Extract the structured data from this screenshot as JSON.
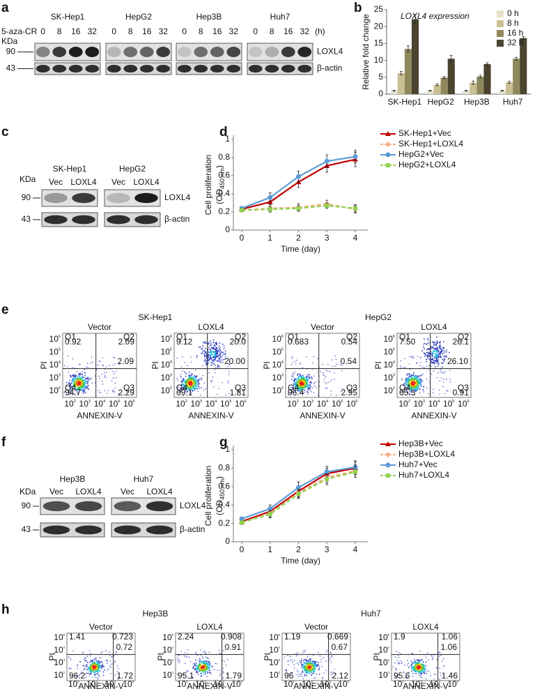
{
  "panels": {
    "a": {
      "label": "a",
      "treatment": "5-aza-CR",
      "kda": "KDa",
      "unit": "(h)",
      "markers": [
        "90",
        "43"
      ],
      "proteins": [
        "LOXL4",
        "β-actin"
      ],
      "cell_lines": [
        {
          "name": "SK-Hep1",
          "lanes": [
            "0",
            "8",
            "16",
            "32"
          ]
        },
        {
          "name": "HepG2",
          "lanes": [
            "0",
            "8",
            "16",
            "32"
          ]
        },
        {
          "name": "Hep3B",
          "lanes": [
            "0",
            "8",
            "16",
            "32"
          ]
        },
        {
          "name": "Huh7",
          "lanes": [
            "0",
            "8",
            "16",
            "32"
          ]
        }
      ]
    },
    "c": {
      "label": "c",
      "kda": "KDa",
      "markers": [
        "90",
        "43"
      ],
      "proteins": [
        "LOXL4",
        "β-actin"
      ],
      "cell_lines": [
        {
          "name": "SK-Hep1",
          "lanes": [
            "Vec",
            "LOXL4"
          ]
        },
        {
          "name": "HepG2",
          "lanes": [
            "Vec",
            "LOXL4"
          ]
        }
      ]
    },
    "e": {
      "label": "e",
      "x_label": "ANNEXIN-V",
      "y_label": "PI",
      "tick_base": "10",
      "tick_exponents": [
        "2",
        "3",
        "4",
        "5",
        "6"
      ],
      "groups": [
        {
          "name": "SK-Hep1",
          "plots": [
            {
              "title": "Vector",
              "value": "2.09",
              "quadrants": [
                {
                  "name": "Q1",
                  "value": "0.92"
                },
                {
                  "name": "Q2",
                  "value": "2.09"
                },
                {
                  "name": "Q4",
                  "value": "94.7"
                },
                {
                  "name": "Q3",
                  "value": "2.29"
                }
              ]
            },
            {
              "title": "LOXL4",
              "value": "20.00",
              "quadrants": [
                {
                  "name": "Q1",
                  "value": "9.12"
                },
                {
                  "name": "Q2",
                  "value": "20.0"
                },
                {
                  "name": "Q4",
                  "value": "69.1"
                },
                {
                  "name": "Q3",
                  "value": "1.81"
                }
              ]
            }
          ]
        },
        {
          "name": "HepG2",
          "plots": [
            {
              "title": "Vector",
              "value": "0.54",
              "quadrants": [
                {
                  "name": "Q1",
                  "value": "0.683"
                },
                {
                  "name": "Q2",
                  "value": "0.54"
                },
                {
                  "name": "Q4",
                  "value": "96.4"
                },
                {
                  "name": "Q3",
                  "value": "2.95"
                }
              ]
            },
            {
              "title": "LOXL4",
              "value": "26.10",
              "quadrants": [
                {
                  "name": "Q1",
                  "value": "7.50"
                },
                {
                  "name": "Q2",
                  "value": "26.1"
                },
                {
                  "name": "Q4",
                  "value": "65.5"
                },
                {
                  "name": "Q3",
                  "value": "0.91"
                }
              ]
            }
          ]
        }
      ]
    },
    "f": {
      "label": "f",
      "kda": "KDa",
      "markers": [
        "90",
        "43"
      ],
      "proteins": [
        "LOXL4",
        "β-actin"
      ],
      "cell_lines": [
        {
          "name": "Hep3B",
          "lanes": [
            "Vec",
            "LOXL4"
          ]
        },
        {
          "name": "Huh7",
          "lanes": [
            "Vec",
            "LOXL4"
          ]
        }
      ]
    },
    "h": {
      "label": "h",
      "x_label": "ANNEXIN-V",
      "y_label": "PI",
      "tick_base": "10",
      "tick_exponents": [
        "2",
        "3",
        "4",
        "5"
      ],
      "groups": [
        {
          "name": "Hep3B",
          "plots": [
            {
              "title": "Vector",
              "value": "0.72",
              "corners": [
                "1.41",
                "0.723",
                "96.2",
                "1.72"
              ]
            },
            {
              "title": "LOXL4",
              "value": "0.91",
              "corners": [
                "2.24",
                "0.908",
                "95.1",
                "1.79"
              ]
            }
          ]
        },
        {
          "name": "Huh7",
          "plots": [
            {
              "title": "Vector",
              "value": "0.67",
              "corners": [
                "1.19",
                "0.669",
                "96",
                "2.12"
              ]
            },
            {
              "title": "LOXL4",
              "value": "1.06",
              "corners": [
                "1.9",
                "1.06",
                "95.6",
                "1.46"
              ]
            }
          ]
        }
      ]
    }
  },
  "chart_data": [
    {
      "type": "bar",
      "panel_label": "b",
      "title": "LOXL4 expression",
      "y_label": "Relative fold change",
      "categories": [
        "SK-Hep1",
        "HepG2",
        "Hep3B",
        "Huh7"
      ],
      "series": [
        {
          "name": "0 h",
          "color": "#e6e1c8",
          "values": [
            1,
            1,
            1,
            1
          ],
          "errors": [
            0.1,
            0.1,
            0.1,
            0.1
          ]
        },
        {
          "name": "8 h",
          "color": "#c9bf94",
          "values": [
            6.2,
            2.8,
            3.4,
            3.5
          ],
          "errors": [
            0.5,
            0.3,
            0.5,
            0.3
          ]
        },
        {
          "name": "16 h",
          "color": "#8f885c",
          "values": [
            13.4,
            4.9,
            5.2,
            10.5
          ],
          "errors": [
            0.9,
            0.3,
            0.4,
            0.4
          ]
        },
        {
          "name": "32 h",
          "color": "#4a4430",
          "values": [
            22.2,
            10.5,
            8.9,
            16.6
          ],
          "errors": [
            1.4,
            1.0,
            0.4,
            0.5
          ]
        }
      ],
      "ylim": [
        0,
        25
      ],
      "yticks": [
        0,
        5,
        10,
        15,
        20,
        25
      ],
      "legend": "upper-right"
    },
    {
      "type": "line",
      "panel_label": "d",
      "x_label": "Time (day)",
      "y_label": "Cell proliferation",
      "y_label_unit": [
        "(OD",
        "450 nm",
        ")"
      ],
      "x": [
        0,
        1,
        2,
        3,
        4
      ],
      "xlim": [
        0,
        4
      ],
      "xticks": [
        0,
        1,
        2,
        3,
        4
      ],
      "ylim": [
        0,
        1
      ],
      "yticks": [
        0,
        0.2,
        0.4,
        0.6,
        0.8,
        1
      ],
      "series": [
        {
          "name": "SK-Hep1+Vec",
          "color": "#c00000",
          "marker": "triangle",
          "dash": false,
          "values": [
            0.23,
            0.31,
            0.53,
            0.71,
            0.78
          ],
          "errors": [
            0.02,
            0.05,
            0.06,
            0.07,
            0.08
          ]
        },
        {
          "name": "SK-Hep1+LOXL4",
          "color": "#f4b183",
          "marker": "diamond",
          "dash": true,
          "values": [
            0.22,
            0.24,
            0.25,
            0.29,
            0.23
          ],
          "errors": [
            0.02,
            0.04,
            0.04,
            0.04,
            0.04
          ]
        },
        {
          "name": "HepG2+Vec",
          "color": "#5b9bd5",
          "marker": "circle",
          "dash": false,
          "values": [
            0.24,
            0.36,
            0.59,
            0.76,
            0.81
          ],
          "errors": [
            0.02,
            0.05,
            0.06,
            0.07,
            0.07
          ]
        },
        {
          "name": "HepG2+LOXL4",
          "color": "#92d050",
          "marker": "square",
          "dash": true,
          "values": [
            0.22,
            0.23,
            0.24,
            0.27,
            0.24
          ],
          "errors": [
            0.02,
            0.03,
            0.03,
            0.03,
            0.04
          ]
        }
      ],
      "legend": "upper-right"
    },
    {
      "type": "line",
      "panel_label": "g",
      "x_label": "Time (day)",
      "y_label": "Cell proliferation",
      "y_label_unit": [
        "(OD",
        "450 nm",
        ")"
      ],
      "x": [
        0,
        1,
        2,
        3,
        4
      ],
      "xlim": [
        0,
        4
      ],
      "xticks": [
        0,
        1,
        2,
        3,
        4
      ],
      "ylim": [
        0,
        1
      ],
      "yticks": [
        0,
        0.2,
        0.4,
        0.6,
        0.8,
        1
      ],
      "series": [
        {
          "name": "Hep3B+Vec",
          "color": "#c00000",
          "marker": "triangle",
          "dash": false,
          "values": [
            0.22,
            0.33,
            0.55,
            0.74,
            0.8
          ],
          "errors": [
            0.02,
            0.04,
            0.06,
            0.06,
            0.07
          ]
        },
        {
          "name": "Hep3B+LOXL4",
          "color": "#f4b183",
          "marker": "diamond",
          "dash": true,
          "values": [
            0.21,
            0.31,
            0.53,
            0.7,
            0.77
          ],
          "errors": [
            0.02,
            0.04,
            0.05,
            0.06,
            0.07
          ]
        },
        {
          "name": "Huh7+Vec",
          "color": "#5b9bd5",
          "marker": "circle",
          "dash": false,
          "values": [
            0.25,
            0.36,
            0.59,
            0.76,
            0.81
          ],
          "errors": [
            0.02,
            0.04,
            0.06,
            0.06,
            0.07
          ]
        },
        {
          "name": "Huh7+LOXL4",
          "color": "#92d050",
          "marker": "square",
          "dash": true,
          "values": [
            0.21,
            0.3,
            0.52,
            0.68,
            0.76
          ],
          "errors": [
            0.02,
            0.04,
            0.05,
            0.06,
            0.06
          ]
        }
      ],
      "legend": "upper-right"
    }
  ]
}
